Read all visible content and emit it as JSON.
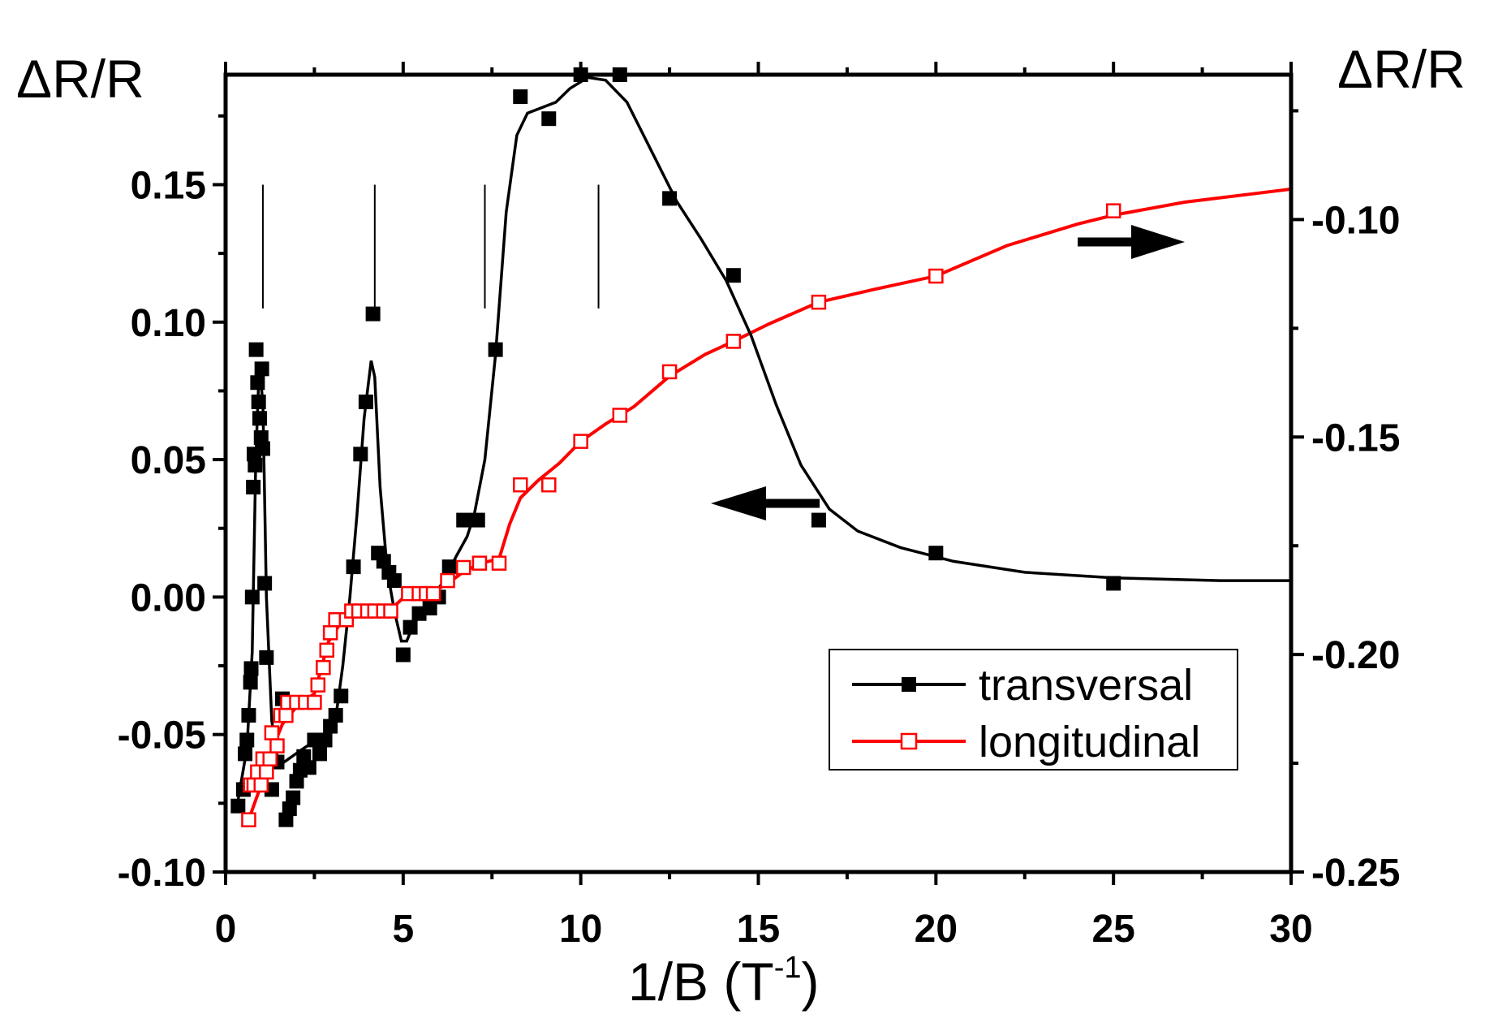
{
  "chart_data": {
    "type": "scatter",
    "xlabel": "1/B  (T",
    "xlabel_sup": "-1",
    "xlabel_end": ")",
    "ylabel_left": "ΔR/R",
    "ylabel_right": "ΔR/R",
    "xlim": [
      0,
      30
    ],
    "ylim_left": [
      -0.1,
      0.19
    ],
    "ylim_right": [
      -0.25,
      -0.0667
    ],
    "x_ticks": [
      0,
      5,
      10,
      15,
      20,
      25,
      30
    ],
    "x_tick_labels": [
      "0",
      "5",
      "10",
      "15",
      "20",
      "25",
      "30"
    ],
    "y_left_ticks": [
      -0.1,
      -0.05,
      0.0,
      0.05,
      0.1,
      0.15
    ],
    "y_left_tick_labels": [
      "-0.10",
      "-0.05",
      "0.00",
      "0.05",
      "0.10",
      "0.15"
    ],
    "y_right_ticks": [
      -0.25,
      -0.2,
      -0.15,
      -0.1
    ],
    "y_right_tick_labels": [
      "-0.25",
      "-0.20",
      "-0.15",
      "-0.10"
    ],
    "legend_position": "bottom-right",
    "markers_vertical_lines_x": [
      1.05,
      4.2,
      7.3,
      10.5
    ],
    "series": [
      {
        "name": "transversal",
        "axis": "left",
        "color": "#000000",
        "marker": "filled-square",
        "points": [
          [
            0.35,
            -0.076
          ],
          [
            0.5,
            -0.07
          ],
          [
            0.55,
            -0.057
          ],
          [
            0.6,
            -0.052
          ],
          [
            0.65,
            -0.043
          ],
          [
            0.7,
            -0.031
          ],
          [
            0.72,
            -0.026
          ],
          [
            0.75,
            0.0
          ],
          [
            0.78,
            0.04
          ],
          [
            0.8,
            0.052
          ],
          [
            0.83,
            0.048
          ],
          [
            0.86,
            0.09
          ],
          [
            0.9,
            0.078
          ],
          [
            0.93,
            0.071
          ],
          [
            0.96,
            0.065
          ],
          [
            1.0,
            0.058
          ],
          [
            1.02,
            0.083
          ],
          [
            1.05,
            0.054
          ],
          [
            1.1,
            0.005
          ],
          [
            1.15,
            -0.022
          ],
          [
            1.3,
            -0.07
          ],
          [
            1.45,
            -0.06
          ],
          [
            1.6,
            -0.037
          ],
          [
            1.7,
            -0.081
          ],
          [
            1.8,
            -0.077
          ],
          [
            1.9,
            -0.073
          ],
          [
            2.0,
            -0.067
          ],
          [
            2.1,
            -0.063
          ],
          [
            2.2,
            -0.058
          ],
          [
            2.35,
            -0.062
          ],
          [
            2.5,
            -0.052
          ],
          [
            2.65,
            -0.057
          ],
          [
            2.8,
            -0.052
          ],
          [
            2.95,
            -0.047
          ],
          [
            3.1,
            -0.043
          ],
          [
            3.25,
            -0.036
          ],
          [
            3.6,
            0.011
          ],
          [
            3.8,
            0.052
          ],
          [
            3.95,
            0.071
          ],
          [
            4.15,
            0.103
          ],
          [
            4.3,
            0.016
          ],
          [
            4.45,
            0.013
          ],
          [
            4.6,
            0.009
          ],
          [
            4.75,
            0.006
          ],
          [
            5.0,
            -0.021
          ],
          [
            5.2,
            -0.011
          ],
          [
            5.45,
            -0.006
          ],
          [
            5.75,
            -0.004
          ],
          [
            6.0,
            0.0
          ],
          [
            6.3,
            0.011
          ],
          [
            6.7,
            0.028
          ],
          [
            7.1,
            0.028
          ],
          [
            7.6,
            0.09
          ],
          [
            8.3,
            0.182
          ],
          [
            9.1,
            0.174
          ],
          [
            10.0,
            0.19
          ],
          [
            11.1,
            0.19
          ],
          [
            12.5,
            0.145
          ],
          [
            14.3,
            0.117
          ],
          [
            16.7,
            0.028
          ],
          [
            20.0,
            0.016
          ],
          [
            25.0,
            0.005
          ]
        ],
        "fit_curve": [
          [
            0.35,
            -0.074
          ],
          [
            0.6,
            -0.055
          ],
          [
            0.75,
            -0.02
          ],
          [
            0.85,
            0.05
          ],
          [
            0.95,
            0.085
          ],
          [
            1.05,
            0.07
          ],
          [
            1.15,
            0.0
          ],
          [
            1.3,
            -0.045
          ],
          [
            1.45,
            -0.058
          ],
          [
            1.65,
            -0.06
          ],
          [
            2.2,
            -0.055
          ],
          [
            2.8,
            -0.05
          ],
          [
            3.1,
            -0.044
          ],
          [
            3.3,
            -0.025
          ],
          [
            3.5,
            0.0
          ],
          [
            3.7,
            0.03
          ],
          [
            3.9,
            0.065
          ],
          [
            4.1,
            0.086
          ],
          [
            4.2,
            0.08
          ],
          [
            4.35,
            0.04
          ],
          [
            4.55,
            0.01
          ],
          [
            4.75,
            -0.005
          ],
          [
            4.95,
            -0.016
          ],
          [
            5.1,
            -0.016
          ],
          [
            5.35,
            -0.008
          ],
          [
            5.7,
            -0.002
          ],
          [
            6.1,
            0.005
          ],
          [
            6.5,
            0.015
          ],
          [
            6.8,
            0.022
          ],
          [
            7.0,
            0.03
          ],
          [
            7.3,
            0.05
          ],
          [
            7.6,
            0.088
          ],
          [
            7.9,
            0.14
          ],
          [
            8.2,
            0.168
          ],
          [
            8.5,
            0.176
          ],
          [
            8.9,
            0.178
          ],
          [
            9.3,
            0.18
          ],
          [
            9.7,
            0.185
          ],
          [
            10.2,
            0.189
          ],
          [
            10.7,
            0.188
          ],
          [
            11.3,
            0.18
          ],
          [
            12.0,
            0.162
          ],
          [
            12.7,
            0.144
          ],
          [
            13.4,
            0.13
          ],
          [
            14.1,
            0.115
          ],
          [
            14.8,
            0.095
          ],
          [
            15.5,
            0.07
          ],
          [
            16.2,
            0.048
          ],
          [
            17.0,
            0.032
          ],
          [
            17.8,
            0.024
          ],
          [
            19.0,
            0.018
          ],
          [
            20.5,
            0.013
          ],
          [
            22.5,
            0.009
          ],
          [
            25.0,
            0.007
          ],
          [
            28.0,
            0.006
          ],
          [
            30.0,
            0.006
          ]
        ]
      },
      {
        "name": "longitudinal",
        "axis": "right",
        "color": "#ff0000",
        "marker": "open-square",
        "points": [
          [
            0.65,
            -0.238
          ],
          [
            0.7,
            -0.23
          ],
          [
            0.8,
            -0.23
          ],
          [
            0.9,
            -0.227
          ],
          [
            1.0,
            -0.23
          ],
          [
            1.05,
            -0.224
          ],
          [
            1.15,
            -0.227
          ],
          [
            1.25,
            -0.224
          ],
          [
            1.3,
            -0.218
          ],
          [
            1.45,
            -0.221
          ],
          [
            1.55,
            -0.214
          ],
          [
            1.7,
            -0.214
          ],
          [
            1.75,
            -0.211
          ],
          [
            2.0,
            -0.211
          ],
          [
            2.25,
            -0.211
          ],
          [
            2.5,
            -0.211
          ],
          [
            2.6,
            -0.207
          ],
          [
            2.75,
            -0.203
          ],
          [
            2.85,
            -0.199
          ],
          [
            2.95,
            -0.195
          ],
          [
            3.1,
            -0.192
          ],
          [
            3.4,
            -0.192
          ],
          [
            3.55,
            -0.19
          ],
          [
            3.75,
            -0.19
          ],
          [
            4.0,
            -0.19
          ],
          [
            4.2,
            -0.19
          ],
          [
            4.45,
            -0.19
          ],
          [
            4.65,
            -0.19
          ],
          [
            5.15,
            -0.186
          ],
          [
            5.45,
            -0.186
          ],
          [
            5.65,
            -0.186
          ],
          [
            5.85,
            -0.186
          ],
          [
            6.25,
            -0.183
          ],
          [
            6.7,
            -0.18
          ],
          [
            7.15,
            -0.179
          ],
          [
            7.7,
            -0.179
          ],
          [
            8.3,
            -0.161
          ],
          [
            9.1,
            -0.161
          ],
          [
            10.0,
            -0.151
          ],
          [
            11.1,
            -0.145
          ],
          [
            12.5,
            -0.135
          ],
          [
            14.3,
            -0.128
          ],
          [
            16.7,
            -0.119
          ],
          [
            20.0,
            -0.113
          ],
          [
            25.0,
            -0.098
          ]
        ],
        "fit_curve": [
          [
            0.65,
            -0.238
          ],
          [
            1.0,
            -0.23
          ],
          [
            1.3,
            -0.222
          ],
          [
            1.6,
            -0.216
          ],
          [
            2.0,
            -0.212
          ],
          [
            2.5,
            -0.209
          ],
          [
            2.9,
            -0.197
          ],
          [
            3.3,
            -0.192
          ],
          [
            4.0,
            -0.19
          ],
          [
            4.6,
            -0.19
          ],
          [
            5.0,
            -0.187
          ],
          [
            5.7,
            -0.186
          ],
          [
            6.2,
            -0.184
          ],
          [
            6.7,
            -0.181
          ],
          [
            7.2,
            -0.179
          ],
          [
            7.7,
            -0.178
          ],
          [
            8.0,
            -0.17
          ],
          [
            8.3,
            -0.164
          ],
          [
            8.8,
            -0.16
          ],
          [
            9.4,
            -0.156
          ],
          [
            10.0,
            -0.151
          ],
          [
            10.7,
            -0.147
          ],
          [
            11.5,
            -0.143
          ],
          [
            12.5,
            -0.136
          ],
          [
            13.5,
            -0.131
          ],
          [
            14.3,
            -0.128
          ],
          [
            15.3,
            -0.124
          ],
          [
            16.7,
            -0.119
          ],
          [
            18.3,
            -0.116
          ],
          [
            20.0,
            -0.113
          ],
          [
            22.0,
            -0.106
          ],
          [
            24.0,
            -0.101
          ],
          [
            25.0,
            -0.099
          ],
          [
            27.0,
            -0.096
          ],
          [
            29.0,
            -0.094
          ],
          [
            30.0,
            -0.093
          ]
        ]
      }
    ]
  }
}
